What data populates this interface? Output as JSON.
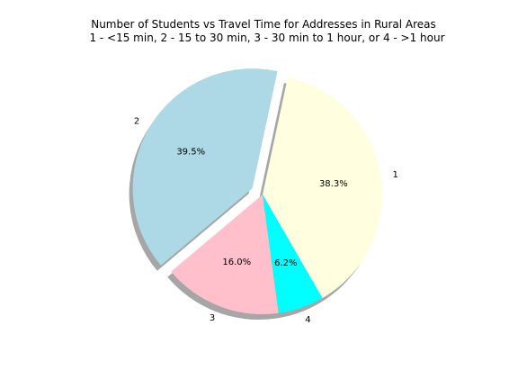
{
  "chart_data": {
    "type": "pie",
    "title_lines": [
      "Number of Students vs Travel Time for Addresses in Rural Areas",
      "1 - <15 min, 2 - 15 to 30 min, 3 - 30 min to 1 hour, or 4 - >1 hour"
    ],
    "categories": [
      "1",
      "2",
      "3",
      "4"
    ],
    "values": [
      38.3,
      39.5,
      16.0,
      6.2
    ],
    "percent_labels": [
      "38.3%",
      "39.5%",
      "16.0%",
      "6.2%"
    ],
    "colors": [
      "#ffffe0",
      "#add8e6",
      "#ffc0cb",
      "#00ffff"
    ],
    "exploded": [
      false,
      true,
      false,
      false
    ],
    "shadow": true
  }
}
